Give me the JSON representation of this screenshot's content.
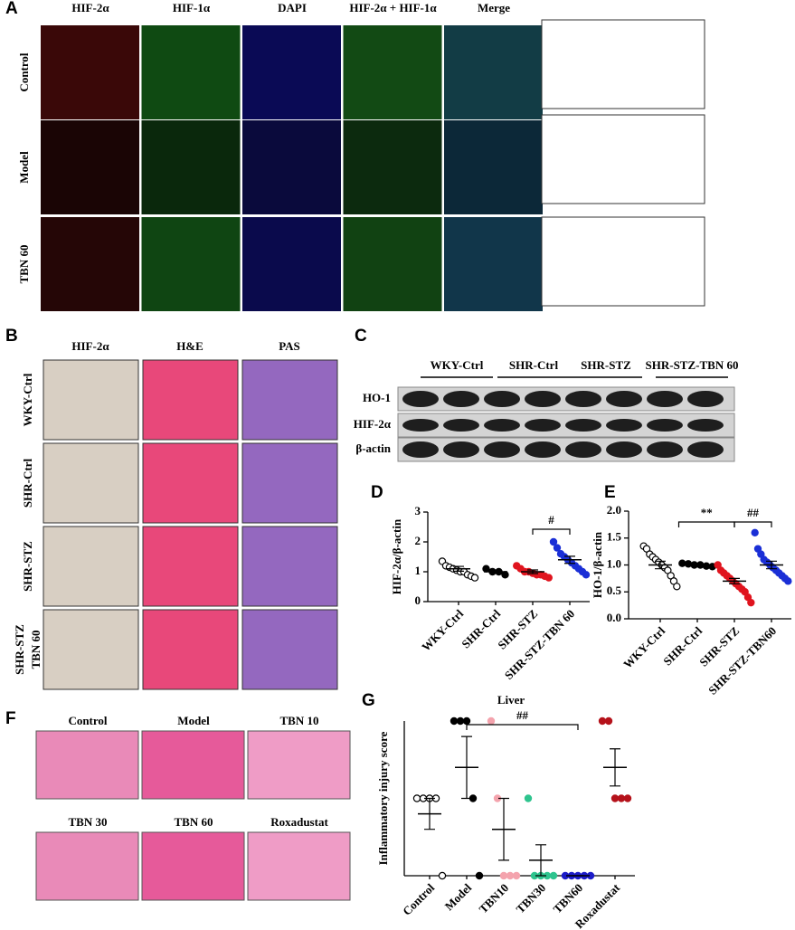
{
  "panel_a": {
    "label": "A",
    "columns": [
      "HIF-2α",
      "HIF-1α",
      "DAPI",
      "HIF-2α + HIF-1α",
      "Merge"
    ],
    "rows": [
      "Control",
      "Model",
      "TBN 60"
    ]
  },
  "panel_b": {
    "label": "B",
    "columns": [
      "HIF-2α",
      "H&E",
      "PAS"
    ],
    "rows": [
      [
        "WKY-Ctrl"
      ],
      [
        "SHR-Ctrl"
      ],
      [
        "SHR-STZ"
      ],
      [
        "SHR-STZ",
        "TBN 60"
      ]
    ]
  },
  "panel_c": {
    "label": "C",
    "groups": [
      "WKY-Ctrl",
      "SHR-Ctrl",
      "SHR-STZ",
      "SHR-STZ-TBN 60"
    ],
    "bands": [
      "HO-1",
      "HIF-2α",
      "β-actin"
    ]
  },
  "panel_f": {
    "label": "F",
    "images": [
      "Control",
      "Model",
      "TBN 10",
      "TBN 30",
      "TBN 60",
      "Roxadustat"
    ]
  },
  "chart_data": [
    {
      "type": "dot",
      "label": "D",
      "y_label": "HIF-2α/β-actin",
      "categories": [
        "WKY-Ctrl",
        "SHR-Ctrl",
        "SHR-STZ",
        "SHR-STZ-TBN 60"
      ],
      "colors": [
        "#ffffff",
        "#000000",
        "#e0141e",
        "#1a2fd6"
      ],
      "values": [
        [
          1.35,
          1.2,
          1.15,
          1.1,
          1.05,
          1.0,
          1.0,
          0.9,
          0.85,
          0.8
        ],
        [
          1.1,
          1.0,
          1.0,
          0.9
        ],
        [
          1.2,
          1.1,
          1.0,
          1.0,
          0.95,
          0.9,
          0.9,
          0.85,
          0.8
        ],
        [
          2.0,
          1.8,
          1.6,
          1.5,
          1.4,
          1.3,
          1.2,
          1.1,
          1.0,
          0.9
        ]
      ],
      "means": [
        1.1,
        1.0,
        1.0,
        1.4
      ],
      "errors": [
        0.08,
        0.05,
        0.06,
        0.12
      ],
      "ylim": [
        0,
        3
      ],
      "yticks": [
        0,
        1,
        2,
        3
      ],
      "annotations": [
        "#"
      ]
    },
    {
      "type": "dot",
      "label": "E",
      "y_label": "HO-1/β-actin",
      "categories": [
        "WKY-Ctrl",
        "SHR-Ctrl",
        "SHR-STZ",
        "SHR-STZ-TBN60"
      ],
      "colors": [
        "#ffffff",
        "#000000",
        "#e0141e",
        "#1a2fd6"
      ],
      "values": [
        [
          1.35,
          1.3,
          1.2,
          1.15,
          1.1,
          1.05,
          1.0,
          0.95,
          0.9,
          0.8,
          0.7,
          0.6
        ],
        [
          1.03,
          1.02,
          1.0,
          1.0,
          0.98,
          0.97
        ],
        [
          1.0,
          0.9,
          0.85,
          0.8,
          0.75,
          0.7,
          0.65,
          0.6,
          0.55,
          0.5,
          0.4,
          0.3
        ],
        [
          1.6,
          1.3,
          1.2,
          1.1,
          1.05,
          1.0,
          0.95,
          0.9,
          0.85,
          0.8,
          0.75,
          0.7
        ]
      ],
      "means": [
        1.0,
        1.0,
        0.7,
        1.0
      ],
      "errors": [
        0.07,
        0.01,
        0.05,
        0.07
      ],
      "ylim": [
        0,
        2
      ],
      "yticks": [
        {
          "value": 0,
          "label": "0.0"
        },
        0.5,
        {
          "value": 1,
          "label": "1.0"
        },
        1.5,
        {
          "value": 2,
          "label": "2.0"
        }
      ],
      "annotations": [
        "**",
        "##"
      ]
    },
    {
      "type": "dot",
      "label": "G",
      "title": "Liver",
      "y_label": "Inflammatory injury score",
      "categories": [
        "Control",
        "Model",
        "TBN10",
        "TBN30",
        "TBN60",
        "Roxadustat"
      ],
      "colors": [
        "#ffffff",
        "#000000",
        "#f4a3ad",
        "#2ec48e",
        "#1c1cc8",
        "#b5121b"
      ],
      "values": [
        [
          1,
          1,
          1,
          1,
          0
        ],
        [
          2,
          2,
          2,
          1,
          0
        ],
        [
          2,
          1,
          0,
          0,
          0
        ],
        [
          1,
          0,
          0,
          0,
          0
        ],
        [
          0,
          0,
          0,
          0,
          0
        ],
        [
          2,
          2,
          1,
          1,
          1
        ]
      ],
      "means": [
        0.8,
        1.4,
        0.6,
        0.2,
        0,
        1.4
      ],
      "errors": [
        0.2,
        0.4,
        0.4,
        0.2,
        0,
        0.24
      ],
      "ylim": [
        0,
        2
      ],
      "annotations": [
        "##"
      ]
    }
  ]
}
